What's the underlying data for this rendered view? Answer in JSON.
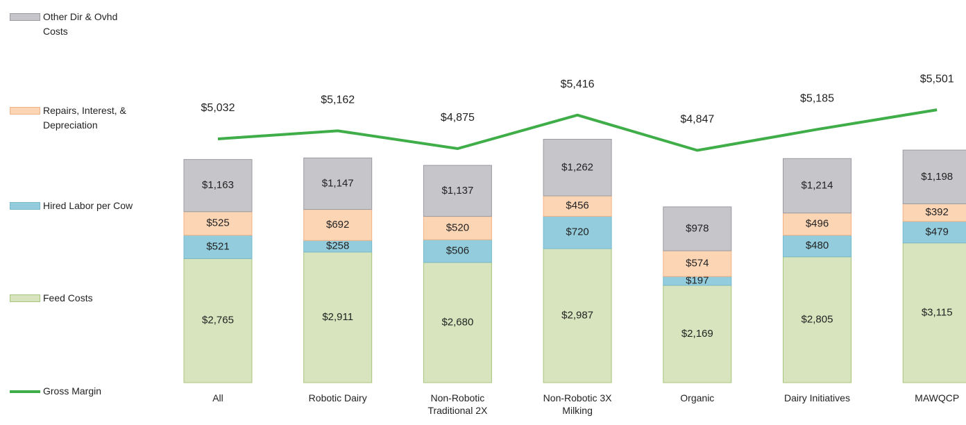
{
  "chart_data": {
    "type": "stacked-bar-line",
    "categories": [
      "All",
      "Robotic Dairy",
      "Non-Robotic Traditional 2X",
      "Non-Robotic 3X Milking",
      "Organic",
      "Dairy  Initiatives",
      "MAWQCP"
    ],
    "ylim": [
      0,
      7600
    ],
    "y2lim": [
      1100,
      6600
    ],
    "series": [
      {
        "name": "Feed Costs",
        "color": "#d7e4bd",
        "values": [
          2765,
          2911,
          2680,
          2987,
          2169,
          2805,
          3115
        ],
        "value_labels": [
          "$2,765",
          "$2,911",
          "$2,680",
          "$2,987",
          "$2,169",
          "$2,805",
          "$3,115"
        ]
      },
      {
        "name": "Hired Labor per Cow",
        "color": "#93cddd",
        "values": [
          521,
          258,
          506,
          720,
          197,
          480,
          479
        ],
        "value_labels": [
          "$521",
          "$258",
          "$506",
          "$720",
          "$197",
          "$480",
          "$479"
        ]
      },
      {
        "name": "Repairs, Interest, &  Depreciation",
        "color": "#fcd5b5",
        "values": [
          525,
          692,
          520,
          456,
          574,
          496,
          392
        ],
        "value_labels": [
          "$525",
          "$692",
          "$520",
          "$456",
          "$574",
          "$496",
          "$392"
        ]
      },
      {
        "name": "Other Dir & Ovhd Costs",
        "color": "#c5c5ca",
        "values": [
          1163,
          1147,
          1137,
          1262,
          978,
          1214,
          1198
        ],
        "value_labels": [
          "$1,163",
          "$1,147",
          "$1,137",
          "$1,262",
          "$978",
          "$1,214",
          "$1,198"
        ]
      },
      {
        "name": "Gross Margin",
        "color": "#3fae49",
        "axis": "y2",
        "values": [
          5032,
          5162,
          4875,
          5416,
          4847,
          5185,
          5501
        ],
        "value_labels": [
          "$5,032",
          "$5,162",
          "$4,875",
          "$5,416",
          "$4,847",
          "$5,185",
          "$5,501"
        ]
      }
    ]
  }
}
